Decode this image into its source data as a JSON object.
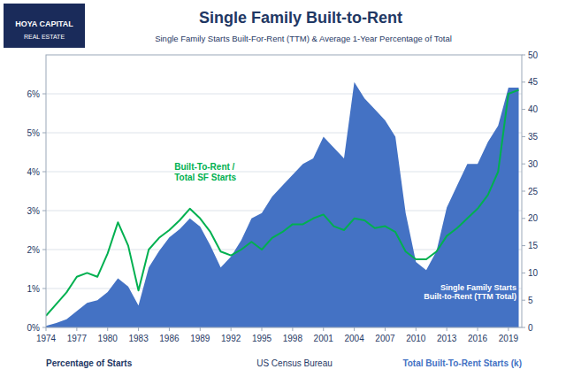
{
  "chart_data": {
    "type": "line",
    "title": "Single Family Built-to-Rent",
    "subtitle": "Single Family Starts Built-For-Rent (TTM) & Average 1-Year Percentage of Total",
    "ylabel": "Percentage of Starts",
    "y2label": "Total Built-To-Rent Starts (k)",
    "annotations": [
      "Built-To-Rent /\nTotal SF Starts",
      "Single Family Starts\nBuilt-to-Rent (TTM Total)",
      "US Census Bureau",
      "HOYA CAPITAL",
      "REAL ESTATE"
    ],
    "x": [
      1974,
      1975,
      1976,
      1977,
      1978,
      1979,
      1980,
      1981,
      1982,
      1983,
      1984,
      1985,
      1986,
      1987,
      1988,
      1989,
      1990,
      1991,
      1992,
      1993,
      1994,
      1995,
      1996,
      1997,
      1998,
      1999,
      2000,
      2001,
      2002,
      2003,
      2004,
      2005,
      2006,
      2007,
      2008,
      2009,
      2010,
      2011,
      2012,
      2013,
      2014,
      2015,
      2016,
      2017,
      2018,
      2019,
      2020
    ],
    "series": [
      {
        "type": "area",
        "axis": "y2",
        "color": "#4472c4",
        "values": [
          0.3,
          0.8,
          1.5,
          3.0,
          4.5,
          5.0,
          6.5,
          9.0,
          7.5,
          4.0,
          11.0,
          14.0,
          16.5,
          18.0,
          20.0,
          18.5,
          15.0,
          11.0,
          13.0,
          16.0,
          20.0,
          21.0,
          24.0,
          26.0,
          28.0,
          30.0,
          31.0,
          35.0,
          33.0,
          31.0,
          45.0,
          42.0,
          40.0,
          38.0,
          35.0,
          21.0,
          12.0,
          10.5,
          14.0,
          22.0,
          26.0,
          30.0,
          30.0,
          34.0,
          37.0,
          44.0,
          44.0
        ]
      },
      {
        "type": "line",
        "color": "#00b050",
        "values": [
          0.003,
          0.006,
          0.009,
          0.013,
          0.014,
          0.013,
          0.019,
          0.027,
          0.021,
          0.0095,
          0.02,
          0.023,
          0.025,
          0.0275,
          0.0305,
          0.028,
          0.0245,
          0.0195,
          0.0185,
          0.02,
          0.022,
          0.02,
          0.023,
          0.0245,
          0.0265,
          0.0265,
          0.028,
          0.029,
          0.026,
          0.025,
          0.028,
          0.0275,
          0.0255,
          0.026,
          0.0245,
          0.0195,
          0.0175,
          0.0175,
          0.0195,
          0.0235,
          0.0255,
          0.028,
          0.0305,
          0.034,
          0.04,
          0.06,
          0.061
        ]
      }
    ],
    "xlim": [
      1974,
      2020.3
    ],
    "xticks": [
      1974,
      1977,
      1980,
      1983,
      1986,
      1989,
      1992,
      1995,
      1998,
      2001,
      2004,
      2007,
      2010,
      2013,
      2016,
      2019
    ],
    "ylim": [
      0,
      0.07
    ],
    "yticks": [
      {
        "value": 0.0,
        "label": "0%"
      },
      {
        "value": 0.01,
        "label": "1%"
      },
      {
        "value": 0.02,
        "label": "2%"
      },
      {
        "value": 0.03,
        "label": "3%"
      },
      {
        "value": 0.04,
        "label": "4%"
      },
      {
        "value": 0.05,
        "label": "5%"
      },
      {
        "value": 0.06,
        "label": "6%"
      }
    ],
    "y2lim": [
      0,
      50
    ],
    "y2ticks": [
      0,
      5,
      10,
      15,
      20,
      25,
      30,
      35,
      40,
      45,
      50
    ],
    "grid": true
  }
}
